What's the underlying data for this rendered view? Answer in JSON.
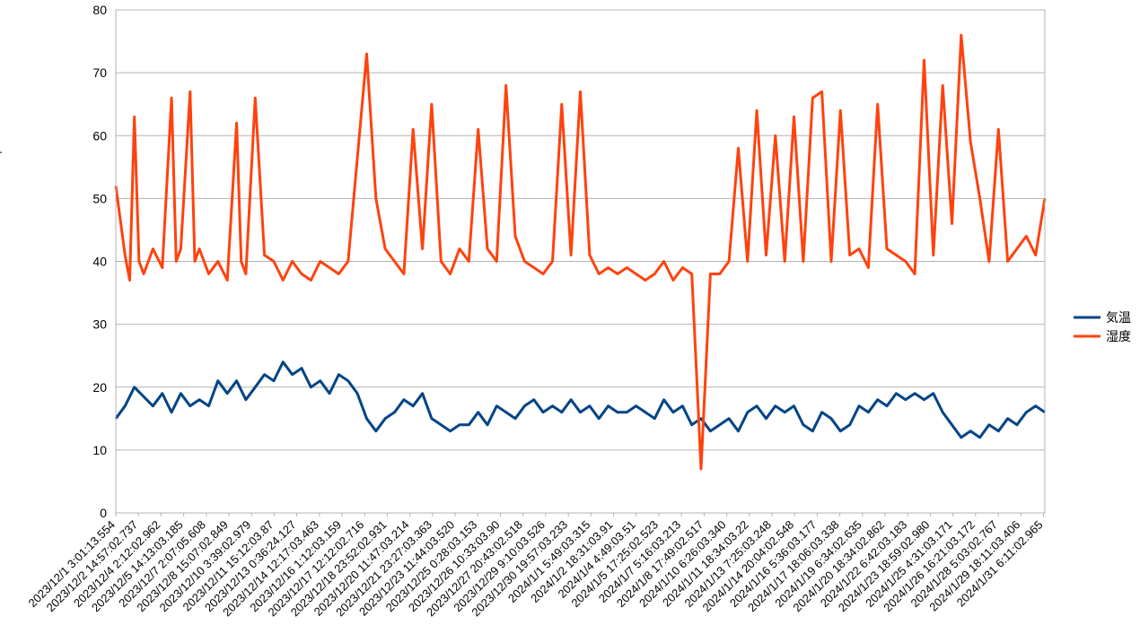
{
  "chart_data": {
    "type": "line",
    "title": "",
    "xlabel": "",
    "ylabel": "",
    "ylim": [
      0,
      80
    ],
    "yticks": [
      0,
      10,
      20,
      30,
      40,
      50,
      60,
      70,
      80
    ],
    "grid": "horizontal",
    "legend_position": "right",
    "x_tick_labels": [
      "2023/12/1 3:01:13.554",
      "2023/12/2 14:57:02.737",
      "2023/12/4 2:12:02.962",
      "2023/12/5 14:13:03.185",
      "2023/12/7 2:07:05.608",
      "2023/12/8 15:07:02.849",
      "2023/12/10 3:39:02.979",
      "2023/12/11 15:12:03.87",
      "2023/12/13 0:36:24.127",
      "2023/12/14 12:17:03.463",
      "2023/12/16 1:12:03.159",
      "2023/12/17 12:12:02.716",
      "2023/12/18 23:52:02.931",
      "2023/12/20 11:47:03.214",
      "2023/12/21 23:27:03.363",
      "2023/12/23 11:44:03.520",
      "2023/12/25 0:28:03.153",
      "2023/12/26 10:33:03.90",
      "2023/12/27 20:43:02.518",
      "2023/12/29 9:10:03.526",
      "2023/12/30 19:57:03.233",
      "2024/1/1 5:49:03.315",
      "2024/1/2 18:31:03.91",
      "2024/1/4 4:49:03.51",
      "2024/1/5 17:25:02.523",
      "2024/1/7 5:16:03.213",
      "2024/1/8 17:49:02.517",
      "2024/1/10 6:26:03.340",
      "2024/1/11 18:34:03.22",
      "2024/1/13 7:25:03.248",
      "2024/1/14 20:04:02.548",
      "2024/1/16 5:36:03.177",
      "2024/1/17 18:06:03.338",
      "2024/1/19 6:34:02.635",
      "2024/1/20 18:34:02.862",
      "2024/1/22 6:42:03.183",
      "2024/1/23 18:59:02.980",
      "2024/1/25 4:31:03.171",
      "2024/1/26 16:21:03.172",
      "2024/1/28 5:03:02.767",
      "2024/1/29 18:11:03.406",
      "2024/1/31 6:11:02.965"
    ],
    "x_range": [
      0,
      1
    ],
    "series": [
      {
        "name": "気温",
        "color": "#004586",
        "points": [
          [
            0,
            15
          ],
          [
            0.01,
            17
          ],
          [
            0.02,
            20
          ],
          [
            0.04,
            17
          ],
          [
            0.05,
            19
          ],
          [
            0.06,
            16
          ],
          [
            0.07,
            19
          ],
          [
            0.08,
            17
          ],
          [
            0.09,
            18
          ],
          [
            0.1,
            17
          ],
          [
            0.11,
            21
          ],
          [
            0.12,
            19
          ],
          [
            0.13,
            21
          ],
          [
            0.14,
            18
          ],
          [
            0.15,
            20
          ],
          [
            0.16,
            22
          ],
          [
            0.17,
            21
          ],
          [
            0.18,
            24
          ],
          [
            0.19,
            22
          ],
          [
            0.2,
            23
          ],
          [
            0.21,
            20
          ],
          [
            0.22,
            21
          ],
          [
            0.23,
            19
          ],
          [
            0.24,
            22
          ],
          [
            0.25,
            21
          ],
          [
            0.26,
            19
          ],
          [
            0.27,
            15
          ],
          [
            0.28,
            13
          ],
          [
            0.29,
            15
          ],
          [
            0.3,
            16
          ],
          [
            0.31,
            18
          ],
          [
            0.32,
            17
          ],
          [
            0.33,
            19
          ],
          [
            0.34,
            15
          ],
          [
            0.35,
            14
          ],
          [
            0.36,
            13
          ],
          [
            0.37,
            14
          ],
          [
            0.38,
            14
          ],
          [
            0.39,
            16
          ],
          [
            0.4,
            14
          ],
          [
            0.41,
            17
          ],
          [
            0.42,
            16
          ],
          [
            0.43,
            15
          ],
          [
            0.44,
            17
          ],
          [
            0.45,
            18
          ],
          [
            0.46,
            16
          ],
          [
            0.47,
            17
          ],
          [
            0.48,
            16
          ],
          [
            0.49,
            18
          ],
          [
            0.5,
            16
          ],
          [
            0.51,
            17
          ],
          [
            0.52,
            15
          ],
          [
            0.53,
            17
          ],
          [
            0.54,
            16
          ],
          [
            0.55,
            16
          ],
          [
            0.56,
            17
          ],
          [
            0.57,
            16
          ],
          [
            0.58,
            15
          ],
          [
            0.59,
            18
          ],
          [
            0.6,
            16
          ],
          [
            0.61,
            17
          ],
          [
            0.62,
            14
          ],
          [
            0.63,
            15
          ],
          [
            0.64,
            13
          ],
          [
            0.65,
            14
          ],
          [
            0.66,
            15
          ],
          [
            0.67,
            13
          ],
          [
            0.68,
            16
          ],
          [
            0.69,
            17
          ],
          [
            0.7,
            15
          ],
          [
            0.71,
            17
          ],
          [
            0.72,
            16
          ],
          [
            0.73,
            17
          ],
          [
            0.74,
            14
          ],
          [
            0.75,
            13
          ],
          [
            0.76,
            16
          ],
          [
            0.77,
            15
          ],
          [
            0.78,
            13
          ],
          [
            0.79,
            14
          ],
          [
            0.8,
            17
          ],
          [
            0.81,
            16
          ],
          [
            0.82,
            18
          ],
          [
            0.83,
            17
          ],
          [
            0.84,
            19
          ],
          [
            0.85,
            18
          ],
          [
            0.86,
            19
          ],
          [
            0.87,
            18
          ],
          [
            0.88,
            19
          ],
          [
            0.89,
            16
          ],
          [
            0.9,
            14
          ],
          [
            0.91,
            12
          ],
          [
            0.92,
            13
          ],
          [
            0.93,
            12
          ],
          [
            0.94,
            14
          ],
          [
            0.95,
            13
          ],
          [
            0.96,
            15
          ],
          [
            0.97,
            14
          ],
          [
            0.98,
            16
          ],
          [
            0.99,
            17
          ],
          [
            1,
            16
          ]
        ]
      },
      {
        "name": "湿度",
        "color": "#ff420e",
        "points": [
          [
            0,
            52
          ],
          [
            0.01,
            41
          ],
          [
            0.015,
            37
          ],
          [
            0.02,
            63
          ],
          [
            0.025,
            40
          ],
          [
            0.03,
            38
          ],
          [
            0.04,
            42
          ],
          [
            0.05,
            39
          ],
          [
            0.06,
            66
          ],
          [
            0.065,
            40
          ],
          [
            0.07,
            42
          ],
          [
            0.08,
            67
          ],
          [
            0.085,
            40
          ],
          [
            0.09,
            42
          ],
          [
            0.1,
            38
          ],
          [
            0.11,
            40
          ],
          [
            0.12,
            37
          ],
          [
            0.13,
            62
          ],
          [
            0.135,
            40
          ],
          [
            0.14,
            38
          ],
          [
            0.15,
            66
          ],
          [
            0.16,
            41
          ],
          [
            0.17,
            40
          ],
          [
            0.18,
            37
          ],
          [
            0.19,
            40
          ],
          [
            0.2,
            38
          ],
          [
            0.21,
            37
          ],
          [
            0.22,
            40
          ],
          [
            0.23,
            39
          ],
          [
            0.24,
            38
          ],
          [
            0.25,
            40
          ],
          [
            0.27,
            73
          ],
          [
            0.28,
            50
          ],
          [
            0.29,
            42
          ],
          [
            0.3,
            40
          ],
          [
            0.31,
            38
          ],
          [
            0.32,
            61
          ],
          [
            0.33,
            42
          ],
          [
            0.34,
            65
          ],
          [
            0.35,
            40
          ],
          [
            0.36,
            38
          ],
          [
            0.37,
            42
          ],
          [
            0.38,
            40
          ],
          [
            0.39,
            61
          ],
          [
            0.4,
            42
          ],
          [
            0.41,
            40
          ],
          [
            0.42,
            68
          ],
          [
            0.43,
            44
          ],
          [
            0.44,
            40
          ],
          [
            0.45,
            39
          ],
          [
            0.46,
            38
          ],
          [
            0.47,
            40
          ],
          [
            0.48,
            65
          ],
          [
            0.49,
            41
          ],
          [
            0.5,
            67
          ],
          [
            0.51,
            41
          ],
          [
            0.52,
            38
          ],
          [
            0.53,
            39
          ],
          [
            0.54,
            38
          ],
          [
            0.55,
            39
          ],
          [
            0.56,
            38
          ],
          [
            0.57,
            37
          ],
          [
            0.58,
            38
          ],
          [
            0.59,
            40
          ],
          [
            0.6,
            37
          ],
          [
            0.61,
            39
          ],
          [
            0.62,
            38
          ],
          [
            0.63,
            7
          ],
          [
            0.64,
            38
          ],
          [
            0.65,
            38
          ],
          [
            0.66,
            40
          ],
          [
            0.67,
            58
          ],
          [
            0.68,
            40
          ],
          [
            0.69,
            64
          ],
          [
            0.7,
            41
          ],
          [
            0.71,
            60
          ],
          [
            0.72,
            40
          ],
          [
            0.73,
            63
          ],
          [
            0.74,
            40
          ],
          [
            0.75,
            66
          ],
          [
            0.76,
            67
          ],
          [
            0.77,
            40
          ],
          [
            0.78,
            64
          ],
          [
            0.79,
            41
          ],
          [
            0.8,
            42
          ],
          [
            0.81,
            39
          ],
          [
            0.82,
            65
          ],
          [
            0.83,
            42
          ],
          [
            0.84,
            41
          ],
          [
            0.85,
            40
          ],
          [
            0.86,
            38
          ],
          [
            0.87,
            72
          ],
          [
            0.88,
            41
          ],
          [
            0.89,
            68
          ],
          [
            0.9,
            46
          ],
          [
            0.91,
            76
          ],
          [
            0.92,
            59
          ],
          [
            0.93,
            50
          ],
          [
            0.94,
            40
          ],
          [
            0.95,
            61
          ],
          [
            0.96,
            40
          ],
          [
            0.97,
            42
          ],
          [
            0.98,
            44
          ],
          [
            0.99,
            41
          ],
          [
            1,
            50
          ]
        ]
      }
    ]
  }
}
